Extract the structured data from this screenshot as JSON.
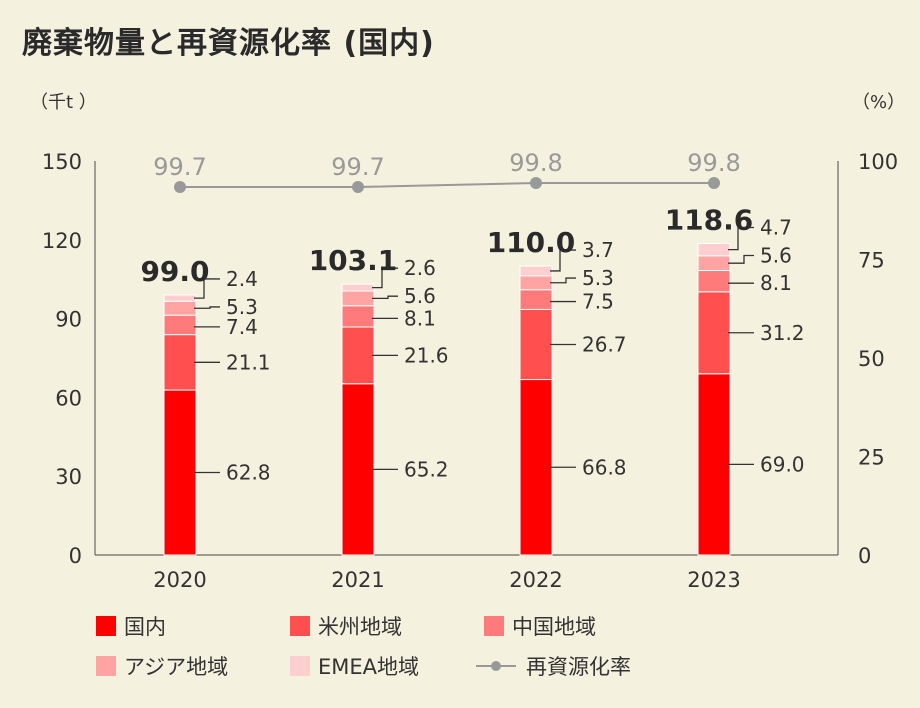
{
  "title": "廃棄物量と再資源化率 (国内)",
  "chart_data": {
    "type": "bar",
    "stacked": true,
    "categories": [
      "2020",
      "2021",
      "2022",
      "2023"
    ],
    "left_axis": {
      "unit": "（千t ）",
      "ylim": [
        0,
        150
      ],
      "ticks": [
        "0",
        "30",
        "60",
        "90",
        "120",
        "150"
      ]
    },
    "right_axis": {
      "unit": "（%）",
      "ylim": [
        0,
        100
      ],
      "ticks": [
        "0",
        "25",
        "50",
        "75",
        "100"
      ]
    },
    "series": [
      {
        "name": "国内",
        "color": "#ff0000",
        "values": [
          62.8,
          65.2,
          66.8,
          69.0
        ],
        "labels": [
          "62.8",
          "65.2",
          "66.8",
          "69.0"
        ]
      },
      {
        "name": "米州地域",
        "color": "#ff4f4f",
        "values": [
          21.1,
          21.6,
          26.7,
          31.2
        ],
        "labels": [
          "21.1",
          "21.6",
          "26.7",
          "31.2"
        ]
      },
      {
        "name": "中国地域",
        "color": "#ff7a7a",
        "values": [
          7.4,
          8.1,
          7.5,
          8.1
        ],
        "labels": [
          "7.4",
          "8.1",
          "7.5",
          "8.1"
        ]
      },
      {
        "name": "アジア地域",
        "color": "#ffa3a3",
        "values": [
          5.3,
          5.6,
          5.3,
          5.6
        ],
        "labels": [
          "5.3",
          "5.6",
          "5.3",
          "5.6"
        ]
      },
      {
        "name": "EMEA地域",
        "color": "#ffcfcf",
        "values": [
          2.4,
          2.6,
          3.7,
          4.7
        ],
        "labels": [
          "2.4",
          "2.6",
          "3.7",
          "4.7"
        ]
      }
    ],
    "totals": [
      "99.0",
      "103.1",
      "110.0",
      "118.6"
    ],
    "line": {
      "name": "再資源化率",
      "color": "#999999",
      "values": [
        99.7,
        99.7,
        99.8,
        99.8
      ],
      "labels": [
        "99.7",
        "99.7",
        "99.8",
        "99.8"
      ]
    }
  }
}
